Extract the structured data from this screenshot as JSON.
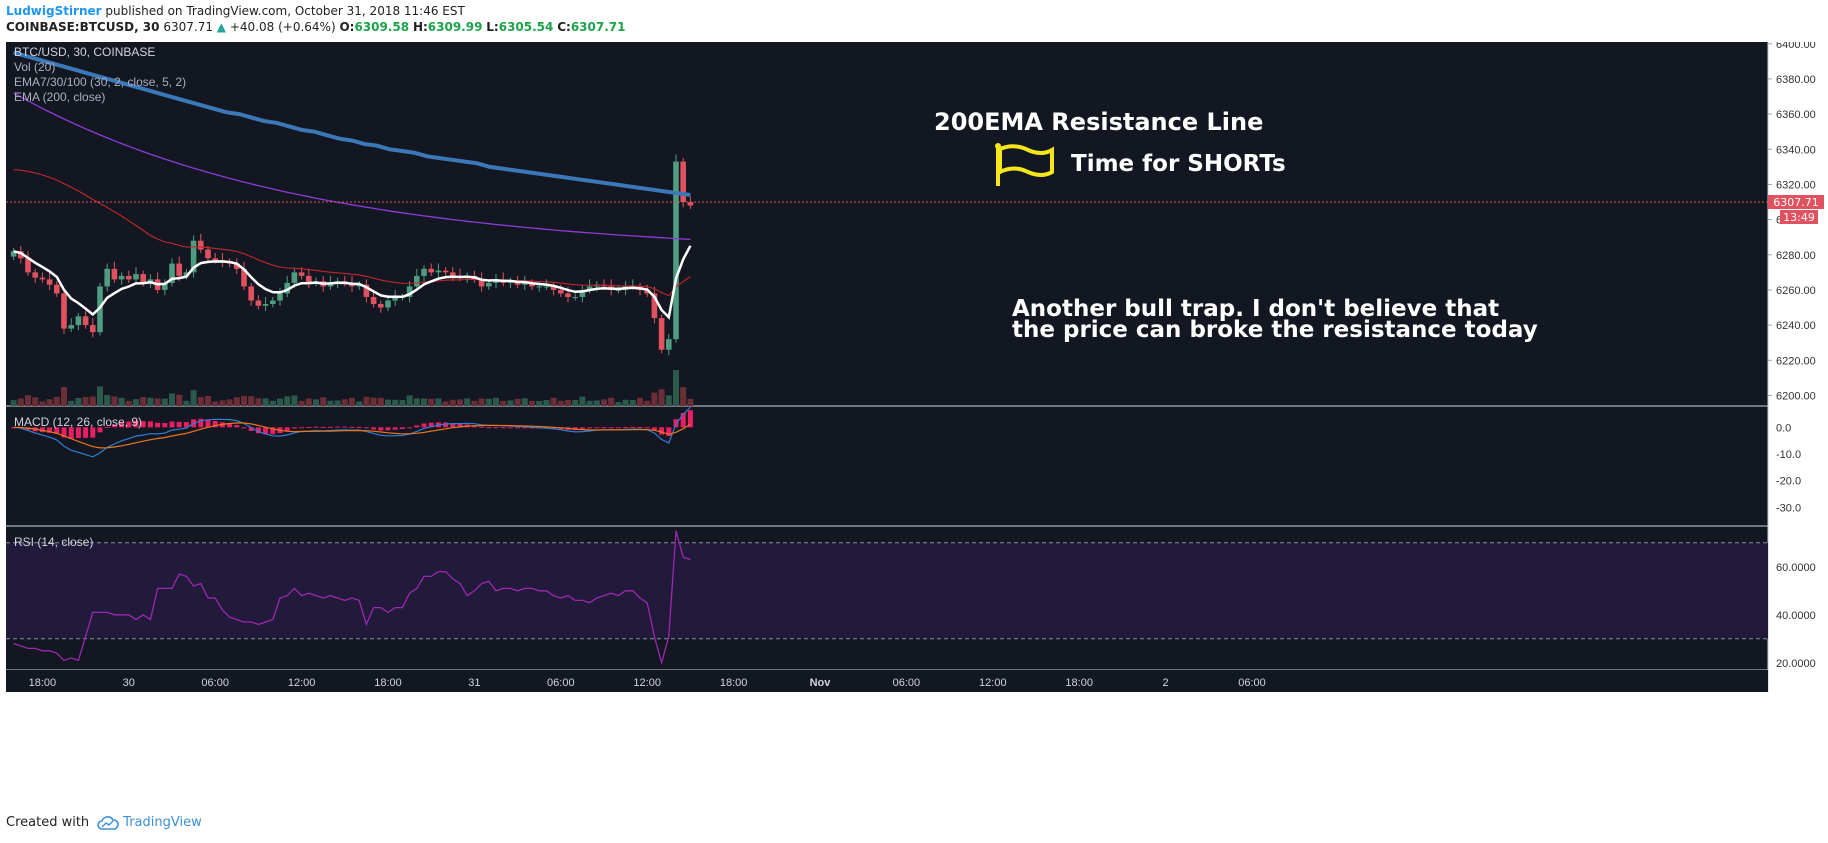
{
  "header": {
    "author": "LudwigStirner",
    "published": "published on TradingView.com, October 31, 2018 11:46 EST",
    "symbol": "COINBASE:BTCUSD, 30",
    "price": "6307.71",
    "change": "+40.08 (+0.64%)",
    "open_label": "O:",
    "open": "6309.58",
    "high_label": "H:",
    "high": "6309.99",
    "low_label": "L:",
    "low": "6305.54",
    "close_label": "C:",
    "close": "6307.71"
  },
  "legend": {
    "title": "BTC/USD, 30, COINBASE",
    "vol": "Vol (20)",
    "ema_triple": "EMA7/30/100 (30, 2, close, 5, 2)",
    "ema200": "EMA (200, close)",
    "macd": "MACD (12, 26, close, 9)",
    "rsi": "RSI (14, close)"
  },
  "annotations": {
    "resistance": "200EMA Resistance Line",
    "shorts": "Time for SHORTs",
    "bulltrap_line1": "Another bull trap. I don't believe that",
    "bulltrap_line2": "the price can broke the resistance today"
  },
  "price_label": "6307.71",
  "countdown_label": "13:49",
  "footer": {
    "created": "Created with",
    "brand": "TradingView"
  },
  "colors": {
    "background": "#131722",
    "up": "#4e9d80",
    "down": "#e0525f",
    "ema200": "#3b78b8",
    "ema100": "#8e3bd8",
    "ema30": "#c0282c",
    "ema7": "#ffffff",
    "macd_line": "#2b7fd4",
    "signal_line": "#e8761c",
    "hist": "#e91e63",
    "rsi_line": "#9c27b0",
    "rsi_band": "#221a3a"
  },
  "chart_data": {
    "type": "candlestick",
    "symbol": "BTC/USD, 30, COINBASE",
    "y_ticks": [
      "6400.00",
      "6380.00",
      "6360.00",
      "6340.00",
      "6320.00",
      "6300.00",
      "6280.00",
      "6260.00",
      "6240.00",
      "6220.00",
      "6200.00"
    ],
    "ylim": [
      6194,
      6401
    ],
    "x_ticks": [
      "18:00",
      "30",
      "06:00",
      "12:00",
      "18:00",
      "31",
      "06:00",
      "12:00",
      "18:00",
      "Nov",
      "06:00",
      "12:00",
      "18:00",
      "2",
      "06:00"
    ],
    "bars_per_tick": 12,
    "first_tick_bar": 4,
    "closes": [
      6282,
      6278,
      6270,
      6267,
      6266,
      6263,
      6258,
      6238,
      6240,
      6245,
      6240,
      6236,
      6262,
      6272,
      6266,
      6268,
      6266,
      6269,
      6264,
      6266,
      6260,
      6264,
      6275,
      6268,
      6270,
      6288,
      6283,
      6278,
      6277,
      6276,
      6275,
      6272,
      6262,
      6254,
      6251,
      6252,
      6254,
      6258,
      6264,
      6270,
      6268,
      6264,
      6265,
      6262,
      6264,
      6265,
      6264,
      6262,
      6263,
      6256,
      6252,
      6250,
      6254,
      6256,
      6256,
      6262,
      6268,
      6272,
      6270,
      6271,
      6270,
      6268,
      6267,
      6268,
      6266,
      6262,
      6264,
      6266,
      6264,
      6265,
      6263,
      6264,
      6262,
      6262,
      6262,
      6260,
      6258,
      6256,
      6256,
      6260,
      6262,
      6263,
      6262,
      6260,
      6260,
      6262,
      6262,
      6260,
      6258,
      6244,
      6226,
      6232,
      6333,
      6310,
      6308
    ],
    "ema200": [
      6395,
      6393,
      6391,
      6389,
      6387,
      6385,
      6383,
      6381,
      6379,
      6377,
      6375,
      6373,
      6371,
      6369,
      6367,
      6365,
      6363,
      6361,
      6360,
      6358,
      6356,
      6355,
      6353,
      6351,
      6350,
      6348,
      6346,
      6345,
      6343,
      6342,
      6340,
      6339,
      6338,
      6336,
      6335,
      6334,
      6333,
      6332,
      6330,
      6329,
      6328,
      6327,
      6326,
      6325,
      6324,
      6323,
      6322,
      6321,
      6320,
      6319,
      6318,
      6317,
      6316,
      6315,
      6314
    ],
    "macd_ticks": [
      "0.0",
      "-10.0",
      "-20.0",
      "-30.0"
    ],
    "macd_ylim": [
      -37,
      8
    ],
    "rsi_ticks": [
      "60.0000",
      "40.0000",
      "20.0000"
    ],
    "rsi_ylim": [
      17,
      77
    ],
    "rsi_bands": [
      70,
      30
    ],
    "rsi": [
      28,
      27,
      26,
      26,
      25,
      25,
      24,
      21,
      22,
      21,
      31,
      41,
      41,
      41,
      40,
      40,
      40,
      38,
      40,
      38,
      51,
      51,
      51,
      57,
      56,
      52,
      53,
      47,
      47,
      42,
      39,
      38,
      37,
      37,
      36,
      37,
      38,
      47,
      48,
      51,
      48,
      49,
      48,
      47,
      48,
      47,
      46,
      47,
      46,
      36,
      43,
      43,
      41,
      43,
      43,
      49,
      51,
      56,
      56,
      58,
      58,
      55,
      53,
      48,
      50,
      53,
      54,
      50,
      51,
      51,
      50,
      51,
      51,
      50,
      50,
      48,
      47,
      48,
      46,
      46,
      45,
      47,
      48,
      49,
      48,
      50,
      50,
      47,
      45,
      31,
      20,
      31,
      75,
      64,
      63
    ]
  }
}
